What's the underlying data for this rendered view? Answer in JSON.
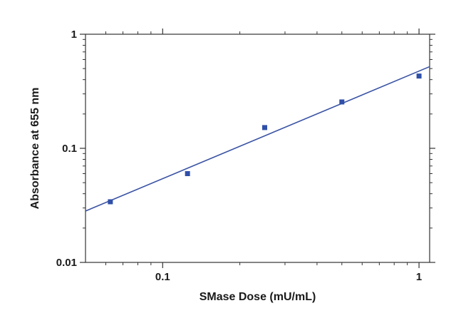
{
  "chart_data": {
    "type": "scatter",
    "title": "",
    "xlabel": "SMase Dose (mU/mL)",
    "ylabel": "Absorbance at 655 nm",
    "xscale": "log",
    "yscale": "log",
    "xlim": [
      0.05,
      1.1
    ],
    "ylim": [
      0.01,
      1
    ],
    "x_ticks": [
      {
        "value": 0.1,
        "label": "0.1"
      },
      {
        "value": 1,
        "label": "1"
      }
    ],
    "y_ticks": [
      {
        "value": 0.01,
        "label": "0.01"
      },
      {
        "value": 0.1,
        "label": "0.1"
      },
      {
        "value": 1,
        "label": "1"
      }
    ],
    "grid": false,
    "legend": "none",
    "series": [
      {
        "marker": "square",
        "color": "#2f4fa8",
        "points": [
          {
            "x": 0.0625,
            "y": 0.034
          },
          {
            "x": 0.125,
            "y": 0.06
          },
          {
            "x": 0.25,
            "y": 0.152
          },
          {
            "x": 0.5,
            "y": 0.255
          },
          {
            "x": 1.0,
            "y": 0.43
          }
        ]
      }
    ],
    "fit_line": {
      "type": "power-law fit",
      "color": "#3a53a4",
      "points": [
        {
          "x": 0.05,
          "y": 0.0282
        },
        {
          "x": 1.1,
          "y": 0.52
        }
      ]
    }
  }
}
